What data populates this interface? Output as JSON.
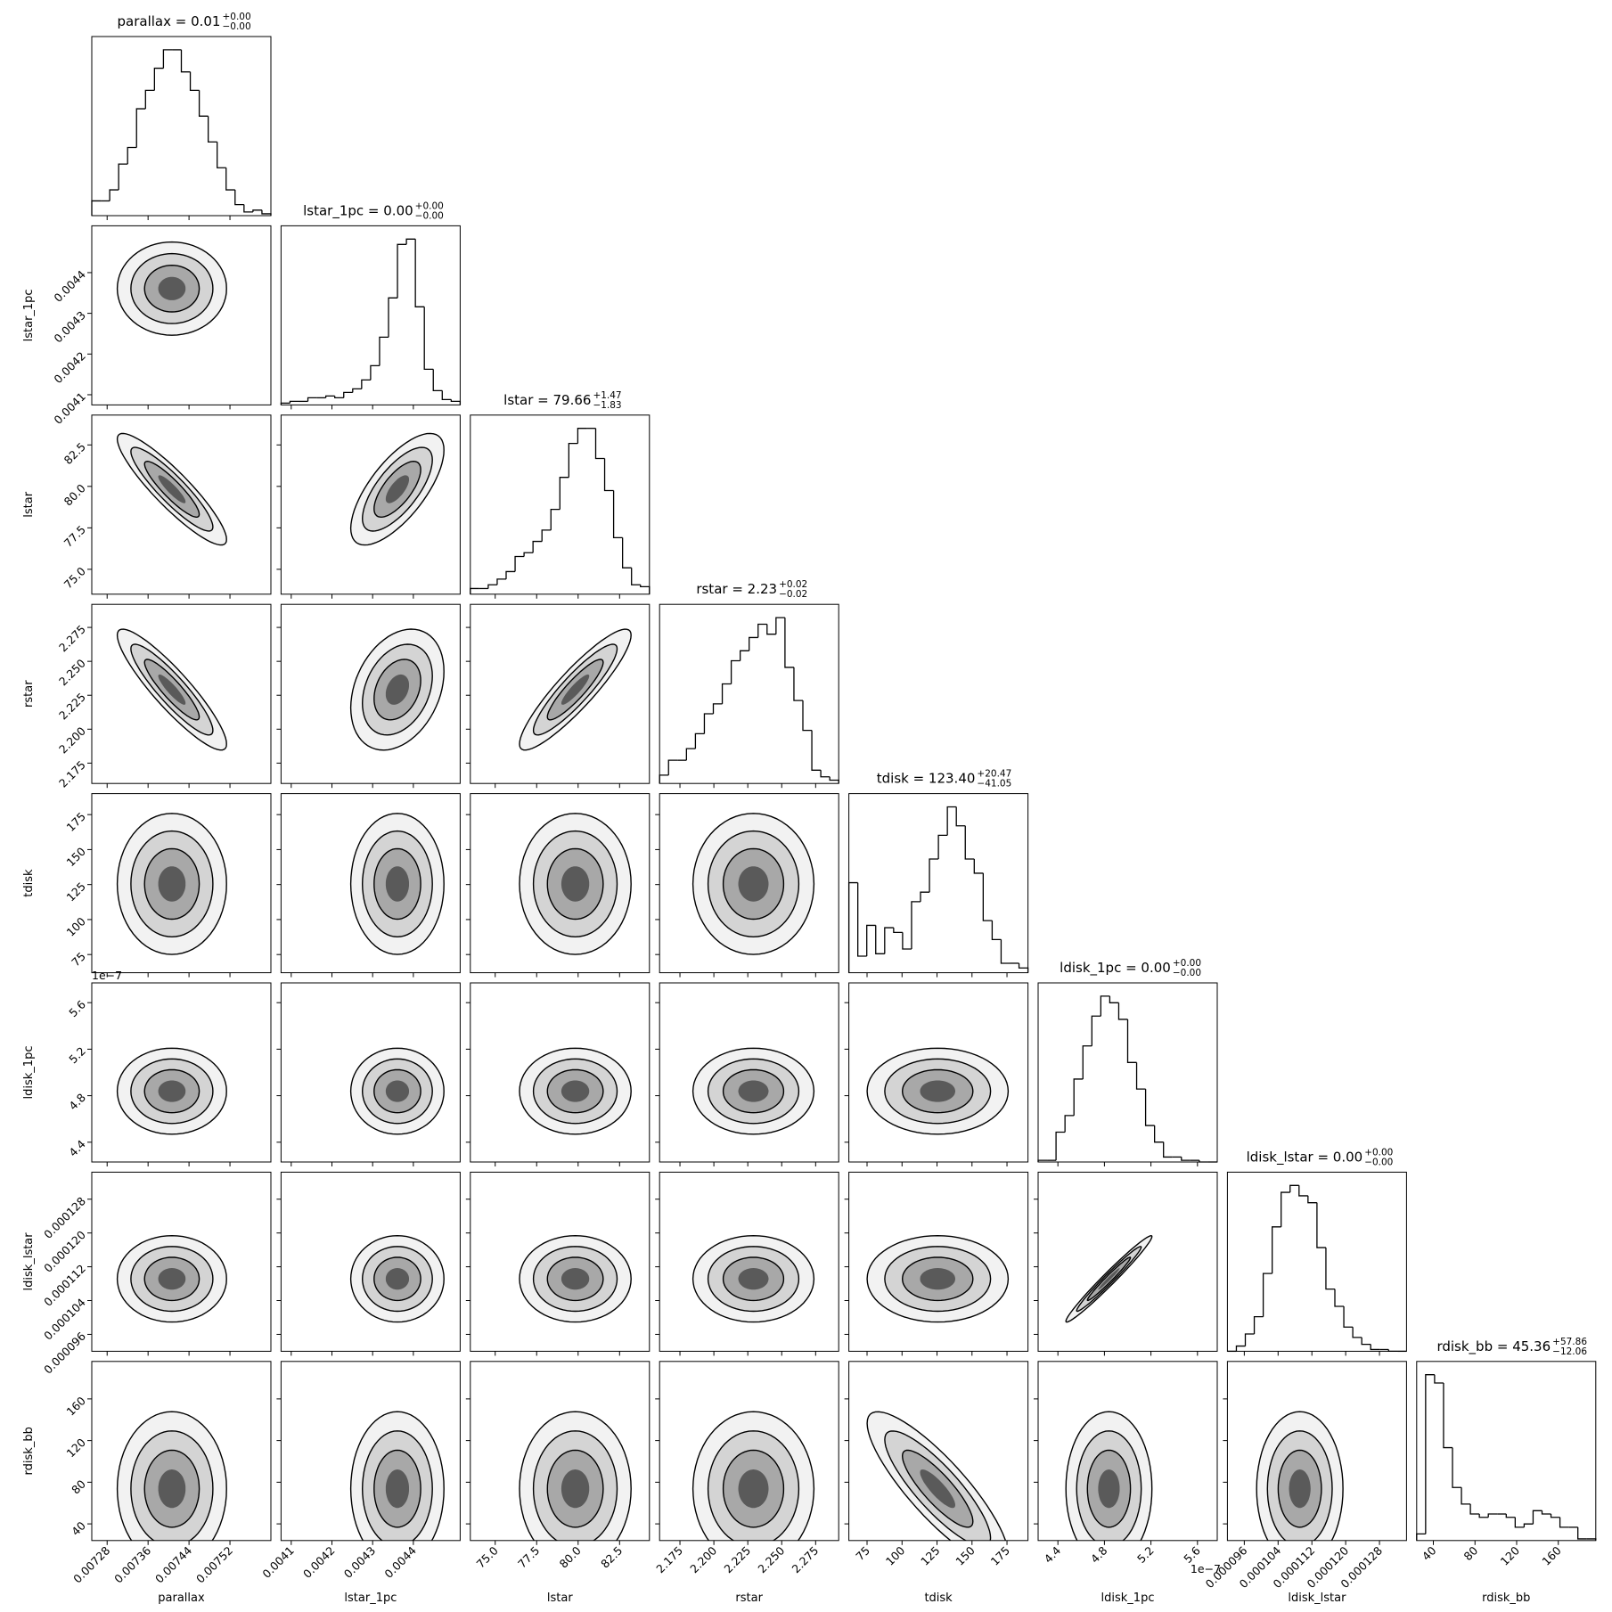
{
  "chart_data": {
    "type": "corner",
    "offset_label": "1e−7",
    "parameters": [
      {
        "name": "parallax",
        "title": {
          "text": "parallax = 0.01",
          "plus": "+0.00",
          "minus": "−0.00"
        },
        "xlim": [
          0.00725,
          0.0076
        ],
        "ticks": [
          0.00728,
          0.00736,
          0.00744,
          0.00752
        ],
        "bins": [
          0.00725,
          0.0072675,
          0.007285,
          0.0073025,
          0.00732,
          0.0073375,
          0.007355,
          0.0073725,
          0.00739,
          0.0074075,
          0.007425,
          0.0074425,
          0.00746,
          0.0074775,
          0.007495,
          0.0075125,
          0.00753,
          0.0075475,
          0.007565,
          0.0075825,
          0.0076
        ],
        "counts": [
          8,
          8,
          14,
          28,
          37,
          58,
          68,
          80,
          90,
          90,
          78,
          68,
          54,
          40,
          26,
          14,
          6,
          2,
          3,
          1
        ]
      },
      {
        "name": "lstar_1pc",
        "title": {
          "text": "lstar_1pc = 0.00",
          "plus": "+0.00",
          "minus": "−0.00"
        },
        "xlim": [
          0.004075,
          0.004515
        ],
        "ticks": [
          0.0041,
          0.0042,
          0.0043,
          0.0044
        ],
        "bins": [
          0.004075,
          0.004097,
          0.004119,
          0.004141,
          0.004163,
          0.004185,
          0.004207,
          0.004229,
          0.004251,
          0.004273,
          0.004295,
          0.004317,
          0.004339,
          0.004361,
          0.004383,
          0.004405,
          0.004427,
          0.004449,
          0.004471,
          0.004493,
          0.004515
        ],
        "counts": [
          1,
          2,
          2,
          4,
          4,
          5,
          4,
          7,
          9,
          14,
          22,
          38,
          60,
          90,
          93,
          55,
          20,
          8,
          3,
          2
        ]
      },
      {
        "name": "lstar",
        "title": {
          "text": "lstar = 79.66",
          "plus": "+1.47",
          "minus": "−1.83"
        },
        "xlim": [
          73.5,
          84.3
        ],
        "ticks": [
          {
            "value": 75,
            "label": "75.0"
          },
          77.5,
          {
            "value": 80,
            "label": "80.0"
          },
          82.5
        ],
        "bins": [
          73.5,
          74.04,
          74.58,
          75.12,
          75.66,
          76.2,
          76.74,
          77.28,
          77.82,
          78.36,
          78.9,
          79.44,
          79.98,
          80.52,
          81.06,
          81.6,
          82.14,
          82.68,
          83.22,
          83.76,
          84.3
        ],
        "counts": [
          3,
          3,
          5,
          8,
          12,
          20,
          22,
          28,
          34,
          45,
          62,
          80,
          88,
          88,
          72,
          55,
          30,
          14,
          5,
          4
        ]
      },
      {
        "name": "rstar",
        "title": {
          "text": "rstar = 2.23",
          "plus": "+0.02",
          "minus": "−0.02"
        },
        "xlim": [
          2.16,
          2.292
        ],
        "ticks": [
          2.175,
          {
            "value": 2.2,
            "label": "2.200"
          },
          2.225,
          {
            "value": 2.25,
            "label": "2.250"
          },
          2.275
        ],
        "bins": [
          2.16,
          2.1666,
          2.1732,
          2.1798,
          2.1864,
          2.193,
          2.1996,
          2.2062,
          2.2128,
          2.2194,
          2.226,
          2.2326,
          2.2392,
          2.2458,
          2.2524,
          2.259,
          2.2656,
          2.2722,
          2.2788,
          2.2854,
          2.292
        ],
        "counts": [
          5,
          14,
          14,
          21,
          30,
          42,
          48,
          60,
          74,
          80,
          88,
          96,
          90,
          100,
          70,
          50,
          32,
          8,
          4,
          2
        ]
      },
      {
        "name": "tdisk",
        "title": {
          "text": "tdisk = 123.40",
          "plus": "+20.47",
          "minus": "−41.05"
        },
        "xlim": [
          62,
          190
        ],
        "ticks": [
          75,
          100,
          125,
          150,
          175
        ],
        "bins": [
          62,
          68.4,
          74.8,
          81.2,
          87.6,
          94,
          100.4,
          106.8,
          113.2,
          119.6,
          126,
          132.4,
          138.8,
          145.2,
          151.6,
          158,
          164.4,
          170.8,
          177.2,
          183.6,
          190
        ],
        "counts": [
          38,
          7,
          20,
          8,
          19,
          17,
          10,
          30,
          34,
          48,
          58,
          70,
          62,
          48,
          42,
          22,
          14,
          4,
          4,
          2
        ]
      },
      {
        "name": "ldisk_1pc",
        "title": {
          "text": "ldisk_1pc = 0.00",
          "plus": "+0.00",
          "minus": "−0.00"
        },
        "xlim": [
          4.23e-07,
          5.77e-07
        ],
        "ticks": [
          {
            "value": 4.4e-07,
            "label": "4.4"
          },
          {
            "value": 4.8e-07,
            "label": "4.8"
          },
          {
            "value": 5.2e-07,
            "label": "5.2"
          },
          {
            "value": 5.6e-07,
            "label": "5.6"
          }
        ],
        "bins": [
          4.23e-07,
          4.307e-07,
          4.384e-07,
          4.461e-07,
          4.538e-07,
          4.615e-07,
          4.692e-07,
          4.769e-07,
          4.846e-07,
          4.923e-07,
          5e-07,
          5.077e-07,
          5.154e-07,
          5.231e-07,
          5.308e-07,
          5.385e-07,
          5.462e-07,
          5.539e-07,
          5.616e-07,
          5.693e-07,
          5.77e-07
        ],
        "counts": [
          1,
          1,
          18,
          28,
          50,
          70,
          88,
          100,
          96,
          86,
          60,
          44,
          22,
          12,
          3,
          3,
          1,
          1,
          0,
          0
        ]
      },
      {
        "name": "ldisk_lstar",
        "title": {
          "text": "ldisk_lstar = 0.00",
          "plus": "+0.00",
          "minus": "−0.00"
        },
        "xlim": [
          9.2e-05,
          0.0001344
        ],
        "ticks": [
          9.6e-05,
          0.000104,
          0.000112,
          {
            "value": 0.00012,
            "label": "0.000120"
          },
          0.000128
        ],
        "bins": [
          9.2e-05,
          9.412e-05,
          9.624e-05,
          9.836e-05,
          0.00010048,
          0.0001026,
          0.00010472,
          0.00010684,
          0.00010896,
          0.00011108,
          0.0001132,
          0.00011532,
          0.00011744,
          0.00011956,
          0.00012168,
          0.0001238,
          0.00012592,
          0.00012804,
          0.00013016,
          0.00013228,
          0.0001344
        ],
        "counts": [
          0,
          3,
          10,
          20,
          45,
          72,
          92,
          96,
          90,
          86,
          60,
          36,
          26,
          14,
          8,
          4,
          1,
          1,
          0,
          0
        ]
      },
      {
        "name": "rdisk_bb",
        "title": {
          "text": "rdisk_bb = 45.36",
          "plus": "+57.86",
          "minus": "−12.06"
        },
        "xlim": [
          24,
          196
        ],
        "ticks": [
          40,
          80,
          120,
          160
        ],
        "bins": [
          24,
          32.6,
          41.2,
          49.8,
          58.4,
          67,
          75.6,
          84.2,
          92.8,
          101.4,
          110,
          118.6,
          127.2,
          135.8,
          144.4,
          153,
          161.6,
          170.2,
          178.8,
          187.4,
          196
        ],
        "counts": [
          4,
          100,
          95,
          56,
          32,
          22,
          16,
          14,
          16,
          16,
          14,
          8,
          10,
          18,
          16,
          14,
          8,
          8,
          1,
          1
        ]
      }
    ],
    "correlations": [
      [
        0
      ],
      [
        -0.9,
        0.7
      ],
      [
        -0.9,
        0.3,
        0.9
      ],
      [
        0,
        0,
        0,
        0
      ],
      [
        0,
        0,
        0,
        0,
        0
      ],
      [
        0,
        0,
        0,
        0,
        0,
        0.98
      ],
      [
        0,
        0,
        0,
        0,
        -0.85,
        0,
        0
      ]
    ]
  }
}
